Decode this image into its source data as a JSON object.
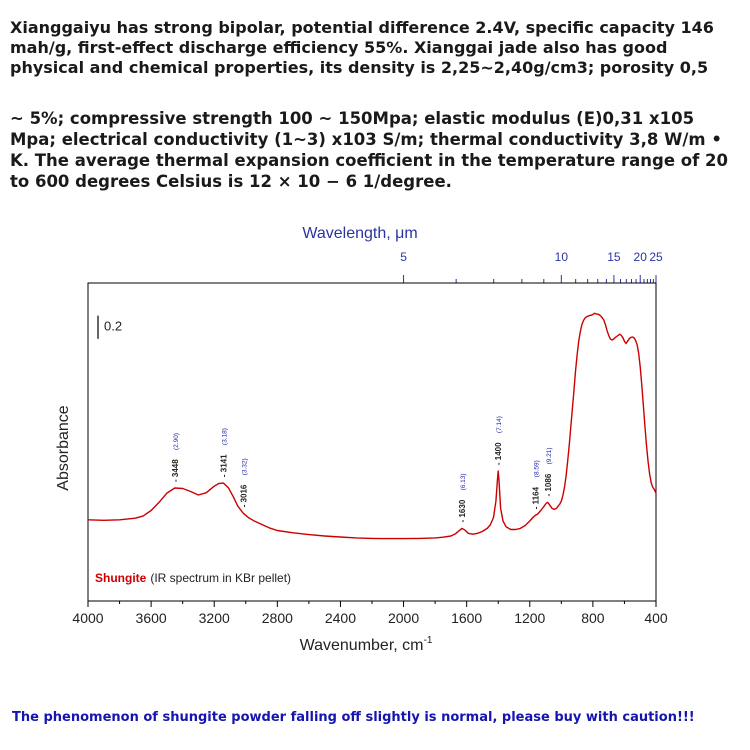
{
  "text": {
    "para1": "Xianggaiyu has strong bipolar, potential difference 2.4V, specific capacity 146 mah/g, first-effect discharge efficiency 55%. Xianggai jade also has good physical and chemical properties, its density is 2,25~2,40g/cm3; porosity 0,5",
    "para2": "~ 5%; compressive strength 100 ~ 150Mpa; elastic modulus (E)0,31 x105 Mpa; electrical conductivity (1~3) x103 S/m; thermal conductivity 3,8 W/m  • K. The average thermal expansion coefficient in the temperature range of 20 to 600 degrees Celsius is 12 × 10 − 6 1/degree.",
    "footer": "The phenomenon of shungite powder falling off slightly is normal, please buy with caution!!!"
  },
  "chart_data": {
    "type": "line",
    "xlabel": "Wavenumber, cm",
    "xlabel_sup": "-1",
    "ylabel": "Absorbance",
    "top_axis_label": "Wavelength, μm",
    "xlim": [
      4000,
      400
    ],
    "x_ticks": [
      4000,
      3600,
      3200,
      2800,
      2400,
      2000,
      1600,
      1200,
      800,
      400
    ],
    "top_ticks": [
      {
        "label": "5",
        "value": 5
      },
      {
        "label": "10",
        "value": 10
      },
      {
        "label": "15",
        "value": 15
      },
      {
        "label": "20",
        "value": 20
      },
      {
        "label": "25",
        "value": 25
      }
    ],
    "top_minor_ticks": [
      6,
      7,
      8,
      9,
      11,
      12,
      13,
      14,
      16,
      17,
      18,
      19,
      21,
      22,
      23,
      24
    ],
    "scale_bar_label": "0.2",
    "scale_bar_value": 0.2,
    "ylim": [
      0,
      1.1
    ],
    "series": [
      {
        "color": "#cc0000",
        "x": [
          4000,
          3900,
          3800,
          3700,
          3650,
          3600,
          3550,
          3500,
          3450,
          3400,
          3350,
          3300,
          3250,
          3200,
          3170,
          3141,
          3110,
          3080,
          3050,
          3016,
          2980,
          2950,
          2900,
          2850,
          2800,
          2700,
          2600,
          2500,
          2400,
          2300,
          2200,
          2100,
          2000,
          1900,
          1800,
          1750,
          1700,
          1670,
          1650,
          1630,
          1610,
          1590,
          1560,
          1530,
          1500,
          1470,
          1450,
          1430,
          1415,
          1405,
          1400,
          1395,
          1385,
          1370,
          1350,
          1320,
          1290,
          1260,
          1230,
          1200,
          1180,
          1164,
          1150,
          1130,
          1110,
          1095,
          1086,
          1075,
          1060,
          1045,
          1030,
          1010,
          1000,
          990,
          980,
          970,
          960,
          950,
          940,
          930,
          920,
          910,
          900,
          890,
          880,
          870,
          860,
          850,
          840,
          830,
          820,
          810,
          800,
          790,
          780,
          770,
          760,
          750,
          740,
          730,
          720,
          710,
          700,
          690,
          680,
          670,
          660,
          650,
          640,
          630,
          620,
          610,
          600,
          590,
          580,
          570,
          560,
          550,
          540,
          530,
          520,
          510,
          500,
          490,
          480,
          470,
          460,
          450,
          440,
          430,
          420,
          410,
          405,
          400
        ],
        "y": [
          0.1,
          0.098,
          0.1,
          0.107,
          0.117,
          0.14,
          0.175,
          0.215,
          0.237,
          0.235,
          0.222,
          0.207,
          0.217,
          0.245,
          0.257,
          0.258,
          0.238,
          0.2,
          0.158,
          0.128,
          0.108,
          0.096,
          0.08,
          0.065,
          0.054,
          0.044,
          0.036,
          0.03,
          0.026,
          0.022,
          0.02,
          0.019,
          0.019,
          0.02,
          0.022,
          0.025,
          0.03,
          0.04,
          0.052,
          0.063,
          0.055,
          0.042,
          0.038,
          0.042,
          0.05,
          0.063,
          0.078,
          0.11,
          0.18,
          0.27,
          0.31,
          0.27,
          0.15,
          0.095,
          0.07,
          0.058,
          0.058,
          0.063,
          0.075,
          0.095,
          0.11,
          0.12,
          0.125,
          0.14,
          0.158,
          0.172,
          0.175,
          0.165,
          0.15,
          0.145,
          0.15,
          0.168,
          0.18,
          0.205,
          0.24,
          0.29,
          0.35,
          0.42,
          0.5,
          0.58,
          0.66,
          0.74,
          0.81,
          0.87,
          0.91,
          0.94,
          0.958,
          0.97,
          0.975,
          0.978,
          0.98,
          0.982,
          0.985,
          0.99,
          0.988,
          0.986,
          0.984,
          0.978,
          0.97,
          0.96,
          0.94,
          0.915,
          0.895,
          0.88,
          0.875,
          0.878,
          0.885,
          0.89,
          0.895,
          0.9,
          0.895,
          0.885,
          0.87,
          0.86,
          0.87,
          0.88,
          0.886,
          0.888,
          0.885,
          0.874,
          0.855,
          0.82,
          0.76,
          0.68,
          0.59,
          0.5,
          0.42,
          0.35,
          0.295,
          0.258,
          0.24,
          0.23,
          0.222,
          0.215
        ]
      }
    ],
    "annotations": [
      {
        "x": 3448,
        "y": 0.237,
        "label": "- 3448",
        "sub": "(2.90)"
      },
      {
        "x": 3141,
        "y": 0.258,
        "label": "- 3141",
        "sub": "(3.18)"
      },
      {
        "x": 3016,
        "y": 0.128,
        "label": "- 3016",
        "sub": "(3.32)"
      },
      {
        "x": 1630,
        "y": 0.063,
        "label": "- 1630",
        "sub": "(6.13)"
      },
      {
        "x": 1400,
        "y": 0.31,
        "label": "- 1400",
        "sub": "(7.14)"
      },
      {
        "x": 1164,
        "y": 0.12,
        "label": "- 1164",
        "sub": "(8.59)"
      },
      {
        "x": 1086,
        "y": 0.175,
        "label": "- 1086",
        "sub": "(9.21)"
      }
    ],
    "legend": {
      "name": "Shungite",
      "desc": "(IR spectrum in KBr pellet)",
      "position": "bottom-left"
    },
    "colors": {
      "line": "#cc0000",
      "legend_name": "#cc0000",
      "top_axis": "#2b35a0",
      "annotation_sub": "#1f2ab0",
      "frame": "#000000"
    }
  }
}
